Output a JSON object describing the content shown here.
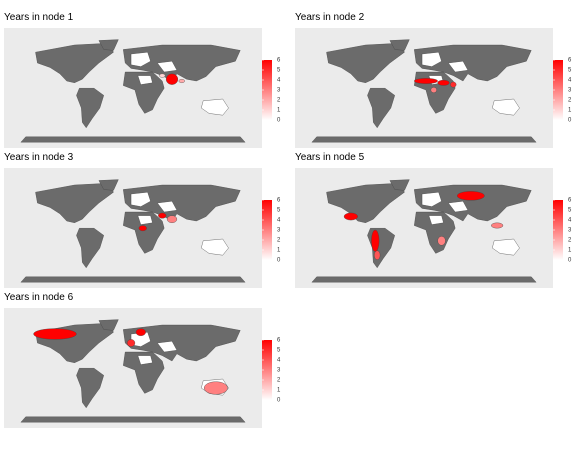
{
  "panels": [
    {
      "title": "Years in node 1",
      "values": [
        6,
        2,
        1
      ]
    },
    {
      "title": "Years in node 2",
      "values": [
        6,
        6,
        5,
        3
      ]
    },
    {
      "title": "Years in node 3",
      "values": [
        6,
        6,
        3
      ]
    },
    {
      "title": "Years in node 5",
      "values": [
        6,
        6,
        6,
        4,
        3,
        3
      ]
    },
    {
      "title": "Years in node 6",
      "values": [
        6,
        6,
        5,
        3
      ]
    }
  ],
  "legend": {
    "ticks": [
      0,
      1,
      2,
      3,
      4,
      5,
      6
    ],
    "low_color": "#ffffff",
    "high_color": "#ff0000"
  }
}
